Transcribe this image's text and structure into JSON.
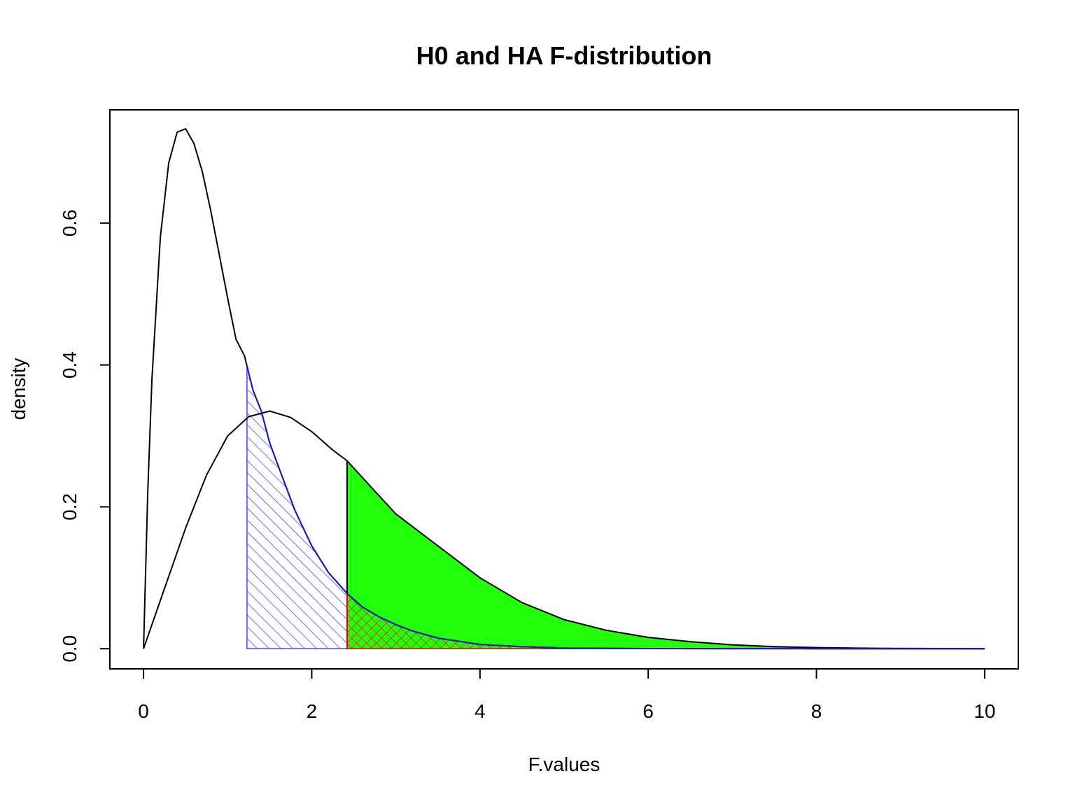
{
  "chart_data": {
    "type": "line",
    "title": "H0 and HA F-distribution",
    "xlabel": "F.values",
    "ylabel": "density",
    "xlim": [
      -0.4,
      10.4
    ],
    "ylim": [
      -0.0284,
      0.7596
    ],
    "xticks": [
      0,
      2,
      4,
      6,
      8,
      10
    ],
    "xtick_labels": [
      "0",
      "2",
      "4",
      "6",
      "8",
      "10"
    ],
    "yticks": [
      0.0,
      0.2,
      0.4,
      0.6
    ],
    "ytick_labels": [
      "0.0",
      "0.2",
      "0.4",
      "0.6"
    ],
    "grid": false,
    "series": [
      {
        "x": [
          0,
          0.05,
          0.1,
          0.2,
          0.3,
          0.4,
          0.5,
          0.6,
          0.7,
          0.8,
          0.9,
          1.0,
          1.1,
          1.2,
          1.3,
          1.4,
          1.5,
          1.6,
          1.8,
          2.0,
          2.2,
          2.42,
          2.6,
          2.8,
          3.0,
          3.2,
          3.5,
          4.0,
          4.5,
          5.0,
          5.5,
          6.0,
          7.0,
          8.0,
          9.0,
          10.0
        ],
        "y": [
          0,
          0.22,
          0.38,
          0.58,
          0.685,
          0.728,
          0.733,
          0.712,
          0.672,
          0.617,
          0.556,
          0.494,
          0.436,
          0.413,
          0.365,
          0.335,
          0.29,
          0.258,
          0.195,
          0.145,
          0.107,
          0.078,
          0.059,
          0.045,
          0.034,
          0.025,
          0.015,
          0.006,
          0.003,
          0.001,
          0.0005,
          0.0002,
          0.0001,
          0,
          0,
          0
        ]
      },
      {
        "x": [
          0,
          0.25,
          0.5,
          0.75,
          1.0,
          1.25,
          1.5,
          1.75,
          2.0,
          2.25,
          2.42,
          2.75,
          3.0,
          3.5,
          4.0,
          4.5,
          5.0,
          5.5,
          6.0,
          6.5,
          7.0,
          7.5,
          8.0,
          8.5,
          9.0,
          9.5,
          10.0
        ],
        "y": [
          0,
          0.085,
          0.17,
          0.245,
          0.3,
          0.327,
          0.335,
          0.326,
          0.306,
          0.28,
          0.265,
          0.222,
          0.19,
          0.145,
          0.1,
          0.065,
          0.041,
          0.026,
          0.016,
          0.01,
          0.0055,
          0.003,
          0.0016,
          0.0008,
          0.0004,
          0.0002,
          0.0001
        ]
      }
    ],
    "shaded_regions": [
      {
        "x_from": 1.23,
        "x_to": 2.42,
        "under_series": 0,
        "fill": "hatched",
        "color": "#4d4dff"
      },
      {
        "x_from": 2.42,
        "x_to": 10.0,
        "under_series": 1,
        "fill": "solid",
        "color": "#22ff0a"
      },
      {
        "x_from": 2.42,
        "x_to": 10.0,
        "under_series": 0,
        "fill": "crosshatched",
        "color": "#ff0000"
      }
    ]
  }
}
